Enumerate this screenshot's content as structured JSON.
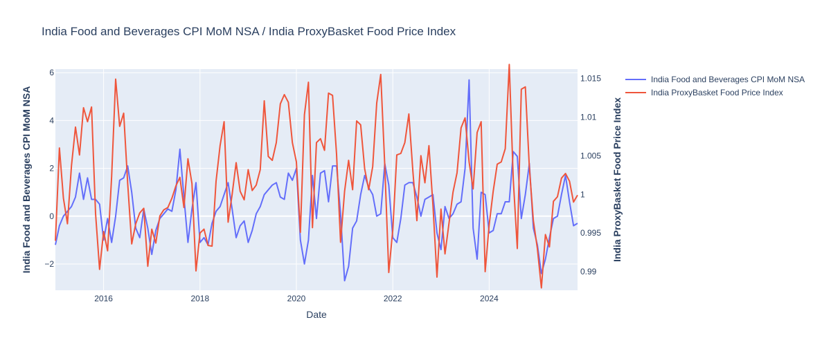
{
  "chart_data": {
    "type": "line",
    "title": "India Food and Beverages CPI MoM NSA / India ProxyBasket Food Price Index",
    "xlabel": "Date",
    "ylabel_left": "India Food and Beverages CPI MoM NSA",
    "ylabel_right": "India ProxyBasket Food Price Index",
    "x_ticks": [
      "2016",
      "2018",
      "2020",
      "2022",
      "2024"
    ],
    "y_left_ticks": [
      "−2",
      "0",
      "2",
      "4",
      "6"
    ],
    "y_right_ticks": [
      "0.99",
      "0.995",
      "1",
      "1.005",
      "1.01",
      "1.015"
    ],
    "ylim_left": [
      -3.1,
      6.15
    ],
    "ylim_right": [
      0.9876,
      1.0162
    ],
    "xlim": [
      "2015-01",
      "2025-11"
    ],
    "grid": true,
    "legend_placement": "top-right outside",
    "colors": {
      "series1": "#636efa",
      "series2": "#ef553b",
      "plot_bg": "#e5ecf6",
      "grid": "#ffffff",
      "text": "#2a3f5f"
    },
    "series": [
      {
        "name": "India Food and Beverages CPI MoM NSA",
        "axis": "left",
        "color": "#636efa",
        "x": [
          "2015-01",
          "2015-02",
          "2015-03",
          "2015-04",
          "2015-05",
          "2015-06",
          "2015-07",
          "2015-08",
          "2015-09",
          "2015-10",
          "2015-11",
          "2015-12",
          "2016-01",
          "2016-02",
          "2016-03",
          "2016-04",
          "2016-05",
          "2016-06",
          "2016-07",
          "2016-08",
          "2016-09",
          "2016-10",
          "2016-11",
          "2016-12",
          "2017-01",
          "2017-02",
          "2017-03",
          "2017-04",
          "2017-05",
          "2017-06",
          "2017-07",
          "2017-08",
          "2017-09",
          "2017-10",
          "2017-11",
          "2017-12",
          "2018-01",
          "2018-02",
          "2018-03",
          "2018-04",
          "2018-05",
          "2018-06",
          "2018-07",
          "2018-08",
          "2018-09",
          "2018-10",
          "2018-11",
          "2018-12",
          "2019-01",
          "2019-02",
          "2019-03",
          "2019-04",
          "2019-05",
          "2019-06",
          "2019-07",
          "2019-08",
          "2019-09",
          "2019-10",
          "2019-11",
          "2019-12",
          "2020-01",
          "2020-02",
          "2020-03",
          "2020-04",
          "2020-05",
          "2020-06",
          "2020-07",
          "2020-08",
          "2020-09",
          "2020-10",
          "2020-11",
          "2020-12",
          "2021-01",
          "2021-02",
          "2021-03",
          "2021-04",
          "2021-05",
          "2021-06",
          "2021-07",
          "2021-08",
          "2021-09",
          "2021-10",
          "2021-11",
          "2021-12",
          "2022-01",
          "2022-02",
          "2022-03",
          "2022-04",
          "2022-05",
          "2022-06",
          "2022-07",
          "2022-08",
          "2022-09",
          "2022-10",
          "2022-11",
          "2022-12",
          "2023-01",
          "2023-02",
          "2023-03",
          "2023-04",
          "2023-05",
          "2023-06",
          "2023-07",
          "2023-08",
          "2023-09",
          "2023-10",
          "2023-11",
          "2023-12",
          "2024-01",
          "2024-02",
          "2024-03",
          "2024-04",
          "2024-05",
          "2024-06",
          "2024-07",
          "2024-08",
          "2024-09",
          "2024-10",
          "2024-11",
          "2024-12",
          "2025-01",
          "2025-02",
          "2025-03",
          "2025-04",
          "2025-05",
          "2025-06",
          "2025-07",
          "2025-08",
          "2025-09",
          "2025-10",
          "2025-11"
        ],
        "values": [
          -1.2,
          -0.4,
          0.0,
          0.2,
          0.4,
          0.8,
          1.8,
          0.7,
          1.6,
          0.7,
          0.7,
          0.5,
          -1.0,
          -0.1,
          -1.1,
          0.0,
          1.5,
          1.6,
          2.1,
          1.0,
          -0.5,
          -0.9,
          0.3,
          -0.5,
          -1.6,
          -0.6,
          -0.1,
          0.1,
          0.3,
          0.2,
          1.1,
          2.8,
          0.8,
          -1.1,
          0.3,
          1.4,
          -1.1,
          -0.9,
          -1.2,
          -0.3,
          0.2,
          0.4,
          0.9,
          1.4,
          0.3,
          -0.9,
          -0.4,
          -0.2,
          -1.1,
          -0.6,
          0.1,
          0.4,
          0.9,
          1.1,
          1.3,
          1.4,
          0.8,
          0.7,
          1.8,
          1.5,
          2.0,
          -1.0,
          -2.0,
          -1.0,
          1.7,
          -0.1,
          1.8,
          1.9,
          0.6,
          2.1,
          2.1,
          0.1,
          -2.7,
          -2.1,
          -0.5,
          -0.2,
          0.9,
          1.7,
          1.2,
          0.9,
          0.0,
          0.1,
          2.2,
          1.3,
          -0.9,
          -1.1,
          -0.1,
          1.3,
          1.4,
          1.4,
          0.8,
          0.0,
          0.7,
          0.8,
          0.9,
          -0.7,
          -1.4,
          0.4,
          -0.1,
          0.1,
          0.5,
          0.6,
          2.0,
          5.7,
          -0.5,
          -1.8,
          1.0,
          0.9,
          -0.7,
          -0.6,
          0.1,
          0.1,
          0.6,
          0.6,
          2.7,
          2.5,
          -0.1,
          0.9,
          2.2,
          -0.5,
          -1.2,
          -2.4,
          -1.8,
          -0.9,
          -0.1,
          0.0,
          0.9,
          1.7,
          0.6,
          -0.4,
          -0.3
        ]
      },
      {
        "name": "India ProxyBasket Food Price Index",
        "axis": "right",
        "color": "#ef553b",
        "x": [
          "2015-01",
          "2015-02",
          "2015-03",
          "2015-04",
          "2015-05",
          "2015-06",
          "2015-07",
          "2015-08",
          "2015-09",
          "2015-10",
          "2015-11",
          "2015-12",
          "2016-01",
          "2016-02",
          "2016-03",
          "2016-04",
          "2016-05",
          "2016-06",
          "2016-07",
          "2016-08",
          "2016-09",
          "2016-10",
          "2016-11",
          "2016-12",
          "2017-01",
          "2017-02",
          "2017-03",
          "2017-04",
          "2017-05",
          "2017-06",
          "2017-07",
          "2017-08",
          "2017-09",
          "2017-10",
          "2017-11",
          "2017-12",
          "2018-01",
          "2018-02",
          "2018-03",
          "2018-04",
          "2018-05",
          "2018-06",
          "2018-07",
          "2018-08",
          "2018-09",
          "2018-10",
          "2018-11",
          "2018-12",
          "2019-01",
          "2019-02",
          "2019-03",
          "2019-04",
          "2019-05",
          "2019-06",
          "2019-07",
          "2019-08",
          "2019-09",
          "2019-10",
          "2019-11",
          "2019-12",
          "2020-01",
          "2020-02",
          "2020-03",
          "2020-04",
          "2020-05",
          "2020-06",
          "2020-07",
          "2020-08",
          "2020-09",
          "2020-10",
          "2020-11",
          "2020-12",
          "2021-01",
          "2021-02",
          "2021-03",
          "2021-04",
          "2021-05",
          "2021-06",
          "2021-07",
          "2021-08",
          "2021-09",
          "2021-10",
          "2021-11",
          "2021-12",
          "2022-01",
          "2022-02",
          "2022-03",
          "2022-04",
          "2022-05",
          "2022-06",
          "2022-07",
          "2022-08",
          "2022-09",
          "2022-10",
          "2022-11",
          "2022-12",
          "2023-01",
          "2023-02",
          "2023-03",
          "2023-04",
          "2023-05",
          "2023-06",
          "2023-07",
          "2023-08",
          "2023-09",
          "2023-10",
          "2023-11",
          "2023-12",
          "2024-01",
          "2024-02",
          "2024-03",
          "2024-04",
          "2024-05",
          "2024-06",
          "2024-07",
          "2024-08",
          "2024-09",
          "2024-10",
          "2024-11",
          "2024-12",
          "2025-01",
          "2025-02",
          "2025-03",
          "2025-04",
          "2025-05",
          "2025-06",
          "2025-07",
          "2025-08",
          "2025-09",
          "2025-10",
          "2025-11"
        ],
        "values": [
          0.994,
          1.006,
          0.9995,
          0.9962,
          1.0037,
          1.0087,
          1.0051,
          1.0112,
          1.0094,
          1.0113,
          0.9975,
          0.9903,
          0.9952,
          0.9927,
          1.0023,
          1.0149,
          1.0088,
          1.0105,
          1.0014,
          0.9936,
          0.9962,
          0.9976,
          0.9982,
          0.9907,
          0.9955,
          0.9937,
          0.9972,
          0.998,
          0.9983,
          0.9995,
          1.0011,
          1.0022,
          0.9983,
          1.0046,
          1.0014,
          0.9901,
          0.995,
          0.9955,
          0.9934,
          0.9933,
          1.0017,
          1.0063,
          1.0094,
          0.9964,
          1.0,
          1.0041,
          1.0004,
          0.9993,
          1.0032,
          1.0005,
          1.0012,
          1.0032,
          1.0121,
          1.0049,
          1.0044,
          1.0067,
          1.0117,
          1.0129,
          1.0119,
          1.0067,
          1.0042,
          0.9951,
          1.0103,
          1.0145,
          0.9957,
          1.0067,
          1.0072,
          1.0057,
          1.0131,
          1.0128,
          1.0052,
          0.9938,
          1.0004,
          1.0044,
          1.0006,
          1.0095,
          1.009,
          1.0033,
          1.0006,
          1.0036,
          1.0118,
          1.0155,
          1.0038,
          0.9899,
          0.9954,
          1.0051,
          1.0053,
          1.0067,
          1.0104,
          1.003,
          0.9966,
          1.005,
          1.0015,
          1.0063,
          0.9986,
          0.9893,
          0.9981,
          0.9923,
          0.9963,
          1.0003,
          1.0028,
          1.0086,
          1.0099,
          1.0042,
          1.0007,
          1.008,
          1.0094,
          0.99,
          0.9961,
          1.0004,
          1.0039,
          1.0042,
          1.0059,
          1.0168,
          1.0019,
          0.993,
          1.0136,
          1.0139,
          1.0035,
          0.9966,
          0.993,
          0.9879,
          0.9948,
          0.9932,
          0.9991,
          0.9997,
          1.0021,
          1.0027,
          1.0017,
          0.999,
          0.9999
        ]
      }
    ]
  }
}
